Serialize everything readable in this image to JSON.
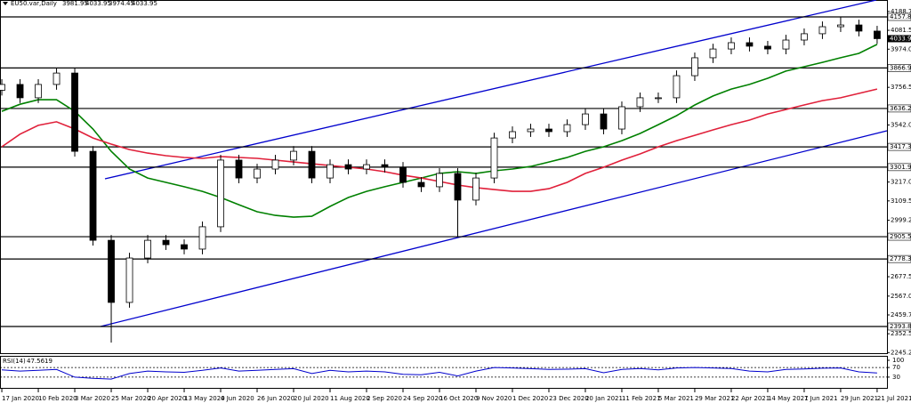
{
  "chart_data": {
    "type": "candlestick",
    "title": "EU50.var,Daily",
    "header_values": [
      3981.95,
      4033.95,
      3974.45,
      4033.95
    ],
    "last_price": 4033.95,
    "xlim": [
      -0.1,
      48.54
    ],
    "xticks": [
      {
        "value": 0,
        "label": "17 Jan 2020"
      },
      {
        "value": 2,
        "label": "10 Feb 2020"
      },
      {
        "value": 4,
        "label": "3 Mar 2020"
      },
      {
        "value": 6,
        "label": "25 Mar 2020"
      },
      {
        "value": 8,
        "label": "20 Apr 2020"
      },
      {
        "value": 10,
        "label": "13 May 2020"
      },
      {
        "value": 12,
        "label": "4 Jun 2020"
      },
      {
        "value": 14,
        "label": "26 Jun 2020"
      },
      {
        "value": 16,
        "label": "20 Jul 2020"
      },
      {
        "value": 18,
        "label": "11 Aug 2020"
      },
      {
        "value": 20,
        "label": "2 Sep 2020"
      },
      {
        "value": 22,
        "label": "24 Sep 2020"
      },
      {
        "value": 24,
        "label": "16 Oct 2020"
      },
      {
        "value": 26,
        "label": "9 Nov 2020"
      },
      {
        "value": 28,
        "label": "1 Dec 2020"
      },
      {
        "value": 30,
        "label": "23 Dec 2020"
      },
      {
        "value": 32,
        "label": "20 Jan 2021"
      },
      {
        "value": 34,
        "label": "11 Feb 2021"
      },
      {
        "value": 36,
        "label": "5 Mar 2021"
      },
      {
        "value": 38,
        "label": "29 Mar 2021"
      },
      {
        "value": 40,
        "label": "22 Apr 2021"
      },
      {
        "value": 42,
        "label": "14 May 2021"
      },
      {
        "value": 44,
        "label": "7 Jun 2021"
      },
      {
        "value": 46,
        "label": "29 Jun 2021"
      },
      {
        "value": 48,
        "label": "21 Jul 2021"
      }
    ],
    "ylim": [
      2236.7,
      4254.2
    ],
    "yticks": [
      4188.75,
      {
        "value": 4081.5,
        "label": "4081.50"
      },
      {
        "value": 3974,
        "label": "3974.00"
      },
      {
        "value": 3756.5,
        "label": "3756.50"
      },
      {
        "value": 3542,
        "label": "3542.00"
      },
      {
        "value": 3217,
        "label": "3217.00"
      },
      {
        "value": 3109.5,
        "label": "3109.50"
      },
      2999.25,
      {
        "value": 2677.5,
        "label": "2677.50"
      },
      {
        "value": 2567,
        "label": "2567.00"
      },
      2459.75,
      {
        "value": 2352.5,
        "label": "2352.50"
      },
      2245.25
    ],
    "levels": [
      4157.88,
      3866.94,
      3636.21,
      3417.31,
      3301.95,
      2905.56,
      2778.37,
      2393.83
    ],
    "up_color": "#ffffff",
    "down_color": "#000000",
    "candles": {
      "open": [
        3740,
        3773,
        3697,
        3773,
        3838,
        3392,
        2885,
        2531,
        2784,
        2885,
        2860,
        2835,
        2962,
        3342,
        3240,
        3291,
        3342,
        3392,
        3240,
        3316,
        3291,
        3316,
        3301,
        3215,
        3190,
        3266,
        3114,
        3240,
        3468,
        3504,
        3519,
        3504,
        3544,
        3605,
        3519,
        3646,
        3697,
        3697,
        3823,
        3925,
        3975,
        4011,
        3991,
        3975,
        4026,
        4062,
        4102,
        4112,
        4077
      ],
      "high": [
        3803,
        3803,
        3803,
        3866,
        3868,
        3422,
        2915,
        2814,
        2915,
        2915,
        2890,
        2992,
        3372,
        3372,
        3321,
        3372,
        3422,
        3422,
        3346,
        3346,
        3346,
        3346,
        3331,
        3245,
        3296,
        3296,
        3270,
        3498,
        3534,
        3549,
        3549,
        3574,
        3635,
        3635,
        3676,
        3727,
        3727,
        3853,
        3955,
        4005,
        4041,
        4041,
        4021,
        4056,
        4092,
        4132,
        4158,
        4142,
        4107
      ],
      "low": [
        3710,
        3667,
        3667,
        3743,
        3362,
        2855,
        2302,
        2501,
        2754,
        2830,
        2805,
        2805,
        2932,
        3210,
        3210,
        3261,
        3312,
        3210,
        3210,
        3261,
        3261,
        3271,
        3185,
        3160,
        3160,
        2905,
        3084,
        3210,
        3438,
        3474,
        3474,
        3474,
        3514,
        3489,
        3489,
        3616,
        3667,
        3667,
        3793,
        3895,
        3945,
        3961,
        3945,
        3945,
        3996,
        4032,
        4072,
        4047,
        4004
      ],
      "close": [
        3773,
        3697,
        3773,
        3838,
        3392,
        2885,
        2531,
        2784,
        2885,
        2860,
        2835,
        2962,
        3342,
        3240,
        3291,
        3342,
        3392,
        3240,
        3316,
        3291,
        3316,
        3301,
        3215,
        3190,
        3266,
        3114,
        3240,
        3468,
        3504,
        3519,
        3504,
        3544,
        3605,
        3519,
        3646,
        3697,
        3697,
        3823,
        3925,
        3975,
        4011,
        3991,
        3975,
        4026,
        4062,
        4102,
        4112,
        4077,
        4034
      ]
    },
    "ma_series": [
      {
        "color": "#008000",
        "values": [
          3620,
          3660,
          3686,
          3686,
          3620,
          3519,
          3392,
          3291,
          3240,
          3215,
          3190,
          3164,
          3129,
          3088,
          3048,
          3027,
          3017,
          3022,
          3078,
          3129,
          3164,
          3190,
          3215,
          3240,
          3266,
          3276,
          3266,
          3281,
          3291,
          3306,
          3331,
          3357,
          3392,
          3418,
          3453,
          3494,
          3544,
          3595,
          3656,
          3707,
          3747,
          3773,
          3808,
          3849,
          3874,
          3899,
          3925,
          3950,
          4001
        ]
      },
      {
        "color": "#e0203a",
        "values": [
          3418,
          3490,
          3540,
          3560,
          3519,
          3468,
          3433,
          3402,
          3382,
          3367,
          3357,
          3352,
          3362,
          3357,
          3352,
          3342,
          3331,
          3321,
          3311,
          3301,
          3291,
          3276,
          3256,
          3240,
          3220,
          3200,
          3185,
          3174,
          3164,
          3164,
          3179,
          3215,
          3266,
          3301,
          3342,
          3377,
          3418,
          3453,
          3483,
          3514,
          3544,
          3570,
          3605,
          3630,
          3656,
          3681,
          3697,
          3722,
          3747
        ]
      }
    ],
    "indicator": {
      "title": "RSI(14)",
      "value": 47.5619,
      "color": "#0000cd",
      "ylim": [
        0,
        100
      ],
      "yticks": [
        100,
        70,
        30
      ],
      "levels": [
        70,
        30
      ],
      "values": [
        60,
        55,
        58,
        62,
        30,
        25,
        22,
        45,
        55,
        52,
        50,
        58,
        68,
        55,
        58,
        62,
        65,
        45,
        58,
        52,
        55,
        52,
        42,
        40,
        50,
        35,
        55,
        70,
        68,
        65,
        62,
        63,
        65,
        48,
        62,
        66,
        60,
        68,
        70,
        68,
        66,
        55,
        52,
        62,
        64,
        67,
        68,
        52,
        47.5619
      ]
    }
  }
}
